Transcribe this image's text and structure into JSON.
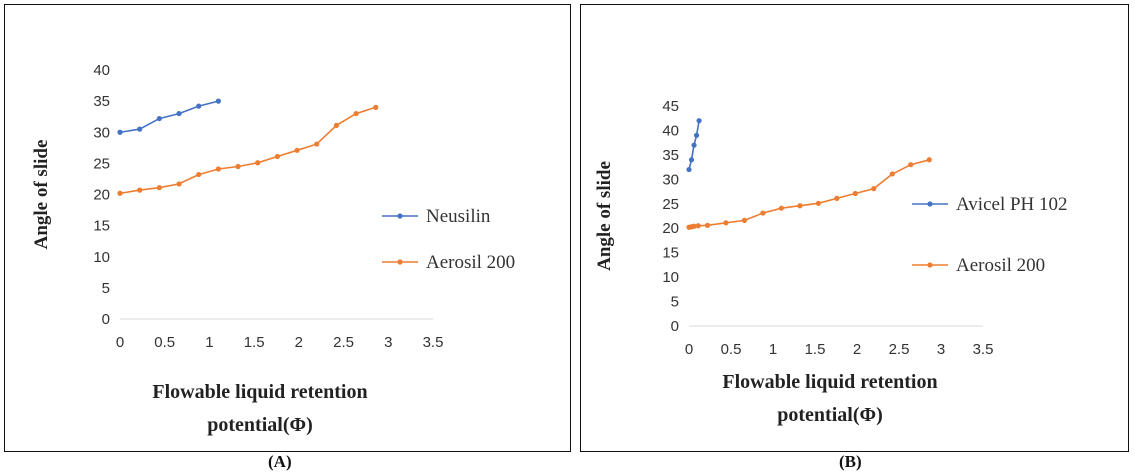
{
  "panels": [
    "(A)",
    "(B)"
  ],
  "chart_data": [
    {
      "type": "line",
      "ylabel": "Angle of slide",
      "xlabel_lines": [
        "Flowable liquid retention",
        "potential(Φ)"
      ],
      "xlim": [
        0,
        3.5
      ],
      "ylim": [
        0,
        40
      ],
      "xticks": [
        "0",
        "0.5",
        "1",
        "1.5",
        "2",
        "2.5",
        "3",
        "3.5"
      ],
      "yticks": [
        "0",
        "5",
        "10",
        "15",
        "20",
        "25",
        "30",
        "35",
        "40"
      ],
      "grid": false,
      "legend_position": "right",
      "series": [
        {
          "name": "Neusilin",
          "color": "#4472C4",
          "x": [
            0,
            0.22,
            0.44,
            0.66,
            0.88,
            1.1
          ],
          "y": [
            30,
            30.5,
            32.2,
            33,
            34.2,
            35
          ]
        },
        {
          "name": "Aerosil 200",
          "color": "#ED7D31",
          "x": [
            0,
            0.22,
            0.44,
            0.66,
            0.88,
            1.1,
            1.32,
            1.54,
            1.76,
            1.98,
            2.2,
            2.42,
            2.64,
            2.86
          ],
          "y": [
            20.2,
            20.7,
            21.1,
            21.7,
            23.2,
            24.1,
            24.5,
            25.1,
            26.1,
            27.1,
            28.1,
            31.1,
            33,
            34
          ]
        }
      ]
    },
    {
      "type": "line",
      "ylabel": "Angle of slide",
      "xlabel_lines": [
        "Flowable liquid retention",
        "potential(Φ)"
      ],
      "xlim": [
        0,
        3.5
      ],
      "ylim": [
        0,
        45
      ],
      "xticks": [
        "0",
        "0.5",
        "1",
        "1.5",
        "2",
        "2.5",
        "3",
        "3.5"
      ],
      "yticks": [
        "0",
        "5",
        "10",
        "15",
        "20",
        "25",
        "30",
        "35",
        "40",
        "45"
      ],
      "grid": false,
      "legend_position": "right",
      "series": [
        {
          "name": "Avicel PH 102",
          "color": "#4472C4",
          "x": [
            0,
            0.03,
            0.06,
            0.09,
            0.12
          ],
          "y": [
            32,
            34,
            37,
            39,
            42
          ]
        },
        {
          "name": "Aerosil 200",
          "color": "#ED7D31",
          "x": [
            0,
            0.03,
            0.06,
            0.11,
            0.22,
            0.44,
            0.66,
            0.88,
            1.1,
            1.32,
            1.54,
            1.76,
            1.98,
            2.2,
            2.42,
            2.64,
            2.86
          ],
          "y": [
            20.2,
            20.3,
            20.4,
            20.5,
            20.6,
            21.1,
            21.6,
            23.1,
            24.1,
            24.6,
            25.1,
            26.1,
            27.1,
            28.1,
            31.1,
            33,
            34
          ]
        }
      ]
    }
  ]
}
